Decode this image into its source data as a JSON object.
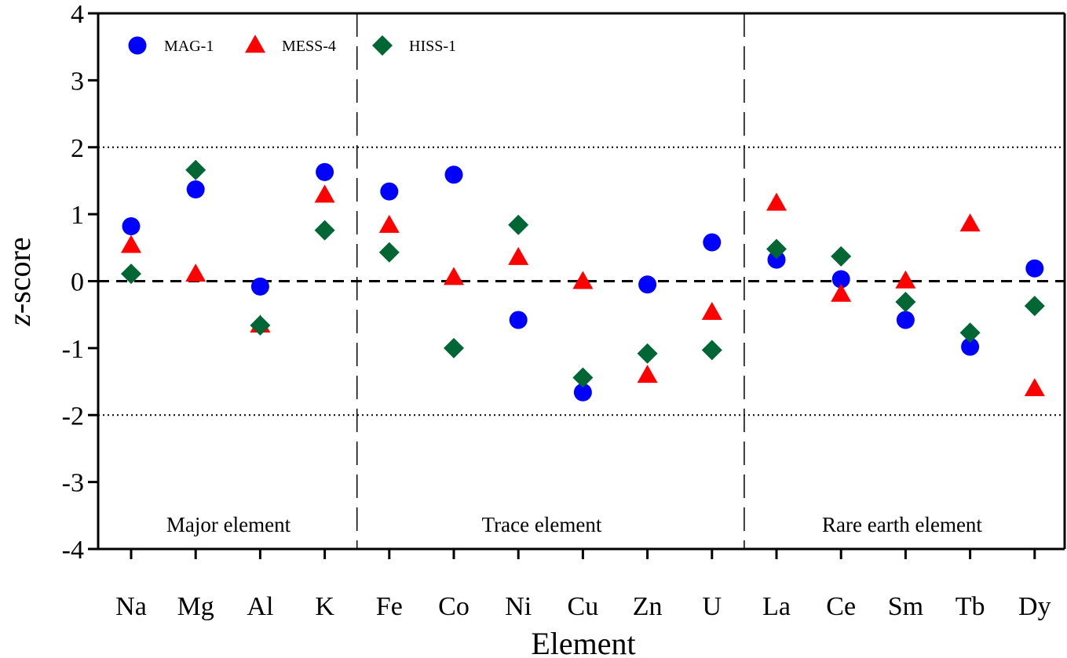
{
  "chart_data": {
    "type": "scatter",
    "xlabel": "Element",
    "ylabel": "z-score",
    "ylabel_italic_part": "z",
    "ylabel_rest": "-score",
    "ylim": [
      -4,
      4
    ],
    "yticks": [
      4,
      3,
      2,
      1,
      0,
      -1,
      -2,
      -3,
      -4
    ],
    "categories": [
      "Na",
      "Mg",
      "Al",
      "K",
      "Fe",
      "Co",
      "Ni",
      "Cu",
      "Zn",
      "U",
      "La",
      "Ce",
      "Sm",
      "Tb",
      "Dy"
    ],
    "reference_lines": [
      {
        "y": 2,
        "style": "dotted"
      },
      {
        "y": -2,
        "style": "dotted"
      },
      {
        "y": 0,
        "style": "dashed"
      }
    ],
    "group_dividers_after": [
      "K",
      "U"
    ],
    "groups": [
      {
        "label": "Major element",
        "categories": [
          "Na",
          "Mg",
          "Al",
          "K"
        ]
      },
      {
        "label": "Trace element",
        "categories": [
          "Fe",
          "Co",
          "Ni",
          "Cu",
          "Zn",
          "U"
        ]
      },
      {
        "label": "Rare earth element",
        "categories": [
          "La",
          "Ce",
          "Sm",
          "Tb",
          "Dy"
        ]
      }
    ],
    "legend_position": "top-left",
    "series": [
      {
        "name": "MAG-1",
        "marker": "circle",
        "color": "#0000ff",
        "values": [
          0.82,
          1.37,
          -0.08,
          1.63,
          1.34,
          1.59,
          -0.58,
          -1.66,
          -0.05,
          0.58,
          0.32,
          0.03,
          -0.58,
          -0.98,
          0.19
        ]
      },
      {
        "name": "MESS-4",
        "marker": "triangle",
        "color": "#ff0000",
        "values": [
          0.53,
          0.1,
          -0.66,
          1.28,
          0.83,
          0.05,
          0.35,
          -0.01,
          -1.41,
          -0.47,
          1.16,
          -0.2,
          0.0,
          0.85,
          -1.61
        ]
      },
      {
        "name": "HISS-1",
        "marker": "diamond",
        "color": "#006633",
        "values": [
          0.11,
          1.66,
          -0.66,
          0.76,
          0.43,
          -1.0,
          0.84,
          -1.44,
          -1.08,
          -1.03,
          0.48,
          0.37,
          -0.31,
          -0.77,
          -0.37
        ]
      }
    ]
  }
}
